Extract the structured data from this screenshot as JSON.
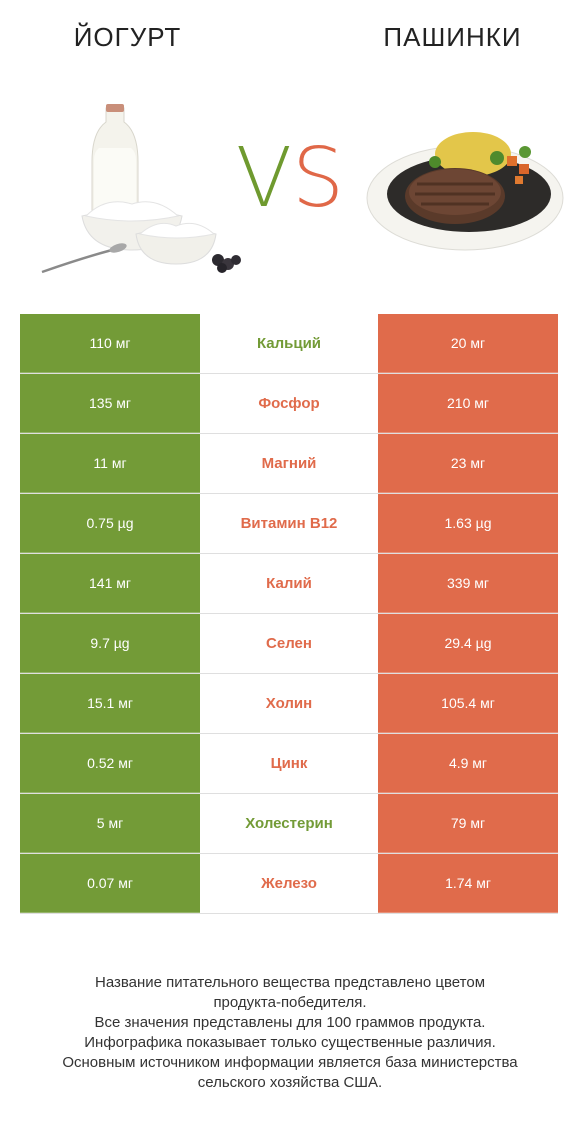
{
  "header": {
    "left_title": "ЙОГУРТ",
    "right_title": "ПАШИНКИ",
    "vs_v": "V",
    "vs_s": "S"
  },
  "colors": {
    "left": "#739b37",
    "right": "#e06b4b"
  },
  "rows": [
    {
      "left": "110 мг",
      "name": "Кальций",
      "right": "20 мг",
      "winner": "left"
    },
    {
      "left": "135 мг",
      "name": "Фосфор",
      "right": "210 мг",
      "winner": "right"
    },
    {
      "left": "11 мг",
      "name": "Магний",
      "right": "23 мг",
      "winner": "right"
    },
    {
      "left": "0.75 µg",
      "name": "Витамин B12",
      "right": "1.63 µg",
      "winner": "right"
    },
    {
      "left": "141 мг",
      "name": "Калий",
      "right": "339 мг",
      "winner": "right"
    },
    {
      "left": "9.7 µg",
      "name": "Селен",
      "right": "29.4 µg",
      "winner": "right"
    },
    {
      "left": "15.1 мг",
      "name": "Холин",
      "right": "105.4 мг",
      "winner": "right"
    },
    {
      "left": "0.52 мг",
      "name": "Цинк",
      "right": "4.9 мг",
      "winner": "right"
    },
    {
      "left": "5 мг",
      "name": "Холестерин",
      "right": "79 мг",
      "winner": "left"
    },
    {
      "left": "0.07 мг",
      "name": "Железо",
      "right": "1.74 мг",
      "winner": "right"
    }
  ],
  "footer": {
    "line1": "Название питательного вещества представлено цветом",
    "line2": "продукта-победителя.",
    "line3": "Все значения представлены для 100 граммов продукта.",
    "line4": "Инфографика показывает только существенные различия.",
    "line5": "Основным источником информации является база министерства",
    "line6": "сельского хозяйства США."
  }
}
